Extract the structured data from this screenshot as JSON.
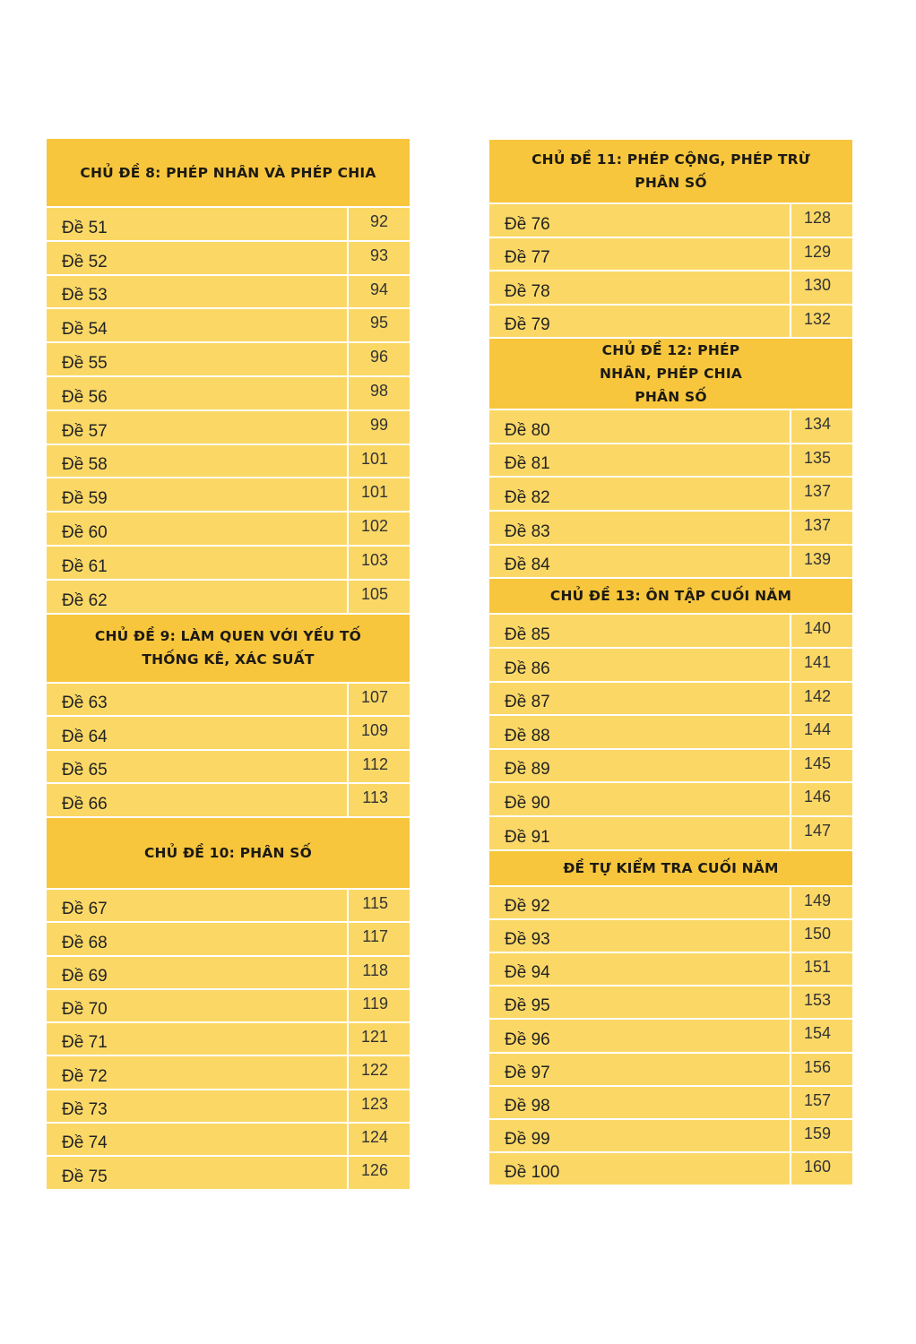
{
  "colors": {
    "header": "#f7c63c",
    "row": "#fbd866",
    "text": "#1d1a14"
  },
  "columns": [
    {
      "sections": [
        {
          "title": "CHỦ ĐỀ 8: PHÉP NHÂN VÀ PHÉP CHIA",
          "rows": [
            [
              "Đề 51",
              "92"
            ],
            [
              "Đề 52",
              "93"
            ],
            [
              "Đề 53",
              "94"
            ],
            [
              "Đề 54",
              "95"
            ],
            [
              "Đề 55",
              "96"
            ],
            [
              "Đề 56",
              "98"
            ],
            [
              "Đề 57",
              "99"
            ],
            [
              "Đề 58",
              "101"
            ],
            [
              "Đề 59",
              "101"
            ],
            [
              "Đề 60",
              "102"
            ],
            [
              "Đề 61",
              "103"
            ],
            [
              "Đề 62",
              "105"
            ]
          ]
        },
        {
          "title": "CHỦ ĐỀ 9: LÀM QUEN VỚI YẾU TỐ THỐNG KÊ, XÁC SUẤT",
          "rows": [
            [
              "Đề 63",
              "107"
            ],
            [
              "Đề 64",
              "109"
            ],
            [
              "Đề 65",
              "112"
            ],
            [
              "Đề 66",
              "113"
            ]
          ]
        },
        {
          "title": "CHỦ ĐỀ 10: PHÂN SỐ",
          "rows": [
            [
              "Đề 67",
              "115"
            ],
            [
              "Đề 68",
              "117"
            ],
            [
              "Đề 69",
              "118"
            ],
            [
              "Đề 70",
              "119"
            ],
            [
              "Đề 71",
              "121"
            ],
            [
              "Đề 72",
              "122"
            ],
            [
              "Đề 73",
              "123"
            ],
            [
              "Đề 74",
              "124"
            ],
            [
              "Đề 75",
              "126"
            ]
          ]
        }
      ]
    },
    {
      "sections": [
        {
          "title": "CHỦ ĐỀ 11: PHÉP CỘNG, PHÉP TRỪ PHÂN SỐ",
          "rows": [
            [
              "Đề 76",
              "128"
            ],
            [
              "Đề 77",
              "129"
            ],
            [
              "Đề 78",
              "130"
            ],
            [
              "Đề 79",
              "132"
            ]
          ]
        },
        {
          "title": "CHỦ ĐỀ 12: PHÉP NHÂN, PHÉP CHIA PHÂN SỐ",
          "rows": [
            [
              "Đề 80",
              "134"
            ],
            [
              "Đề 81",
              "135"
            ],
            [
              "Đề 82",
              "137"
            ],
            [
              "Đề 83",
              "137"
            ],
            [
              "Đề 84",
              "139"
            ]
          ]
        },
        {
          "title": "CHỦ ĐỀ 13: ÔN TẬP CUỐI NĂM",
          "rows": [
            [
              "Đề 85",
              "140"
            ],
            [
              "Đề 86",
              "141"
            ],
            [
              "Đề 87",
              "142"
            ],
            [
              "Đề 88",
              "144"
            ],
            [
              "Đề 89",
              "145"
            ],
            [
              "Đề 90",
              "146"
            ],
            [
              "Đề 91",
              "147"
            ]
          ]
        },
        {
          "title": "ĐỀ TỰ KIỂM TRA CUỐI NĂM",
          "rows": [
            [
              "Đề 92",
              "149"
            ],
            [
              "Đề 93",
              "150"
            ],
            [
              "Đề 94",
              "151"
            ],
            [
              "Đề 95",
              "153"
            ],
            [
              "Đề 96",
              "154"
            ],
            [
              "Đề 97",
              "156"
            ],
            [
              "Đề 98",
              "157"
            ],
            [
              "Đề 99",
              "159"
            ],
            [
              "Đề 100",
              "160"
            ]
          ]
        }
      ]
    }
  ]
}
